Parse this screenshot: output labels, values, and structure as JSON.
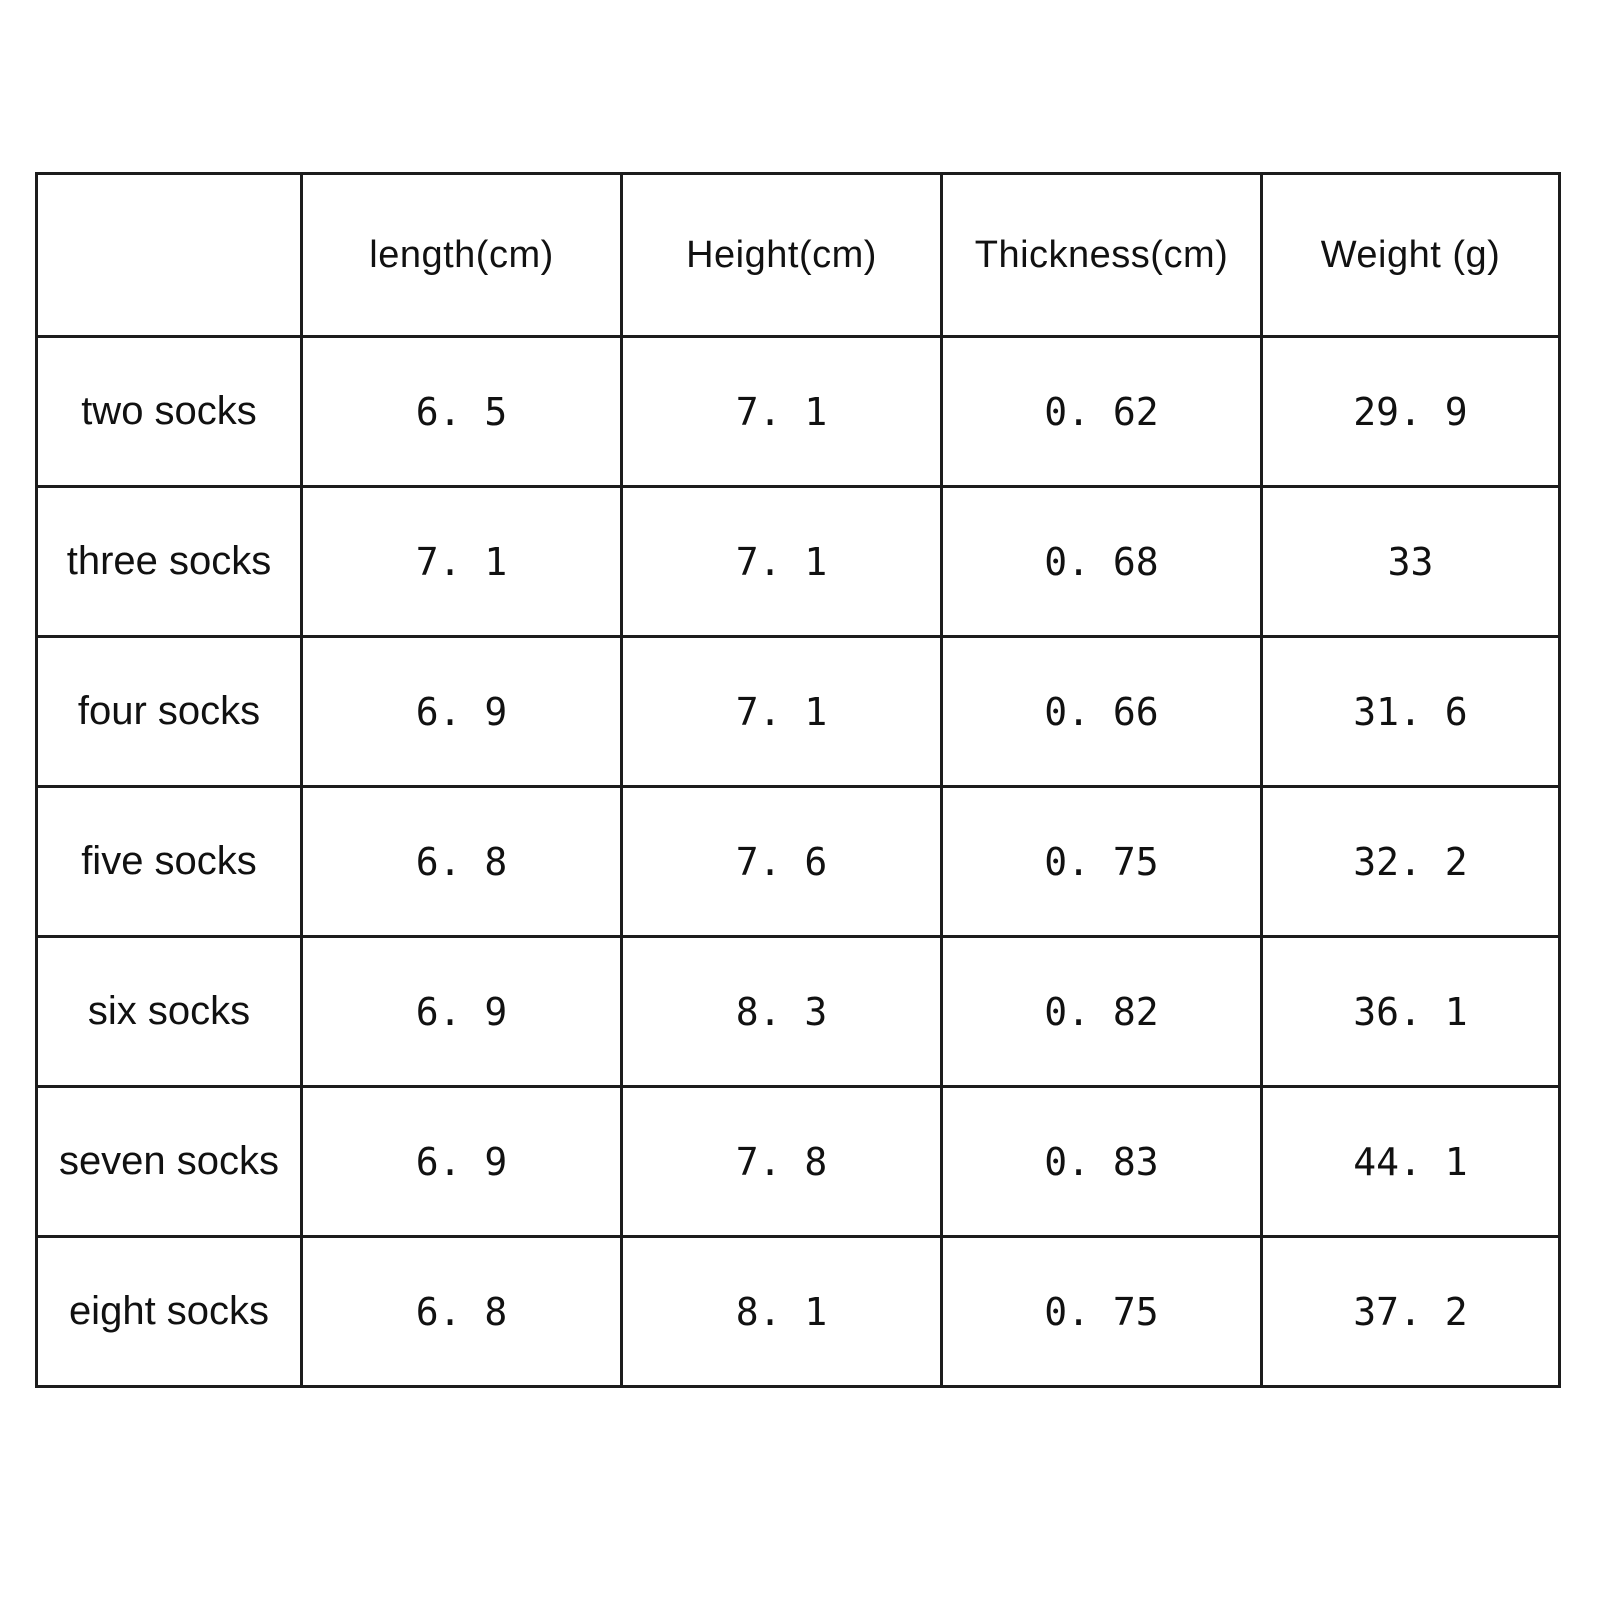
{
  "page": {
    "background_color": "#ffffff",
    "border_color": "#1c1c1c",
    "text_color": "#111111"
  },
  "table": {
    "columns": [
      "",
      "length(cm)",
      "Height(cm)",
      "Thickness(cm)",
      "Weight (g)"
    ],
    "rows": [
      {
        "label": "two socks",
        "length": "6. 5",
        "height": "7. 1",
        "thickness": "0. 62",
        "weight": "29. 9"
      },
      {
        "label": "three socks",
        "length": "7. 1",
        "height": "7. 1",
        "thickness": "0. 68",
        "weight": "33"
      },
      {
        "label": "four socks",
        "length": "6. 9",
        "height": "7. 1",
        "thickness": "0. 66",
        "weight": "31. 6"
      },
      {
        "label": "five socks",
        "length": "6. 8",
        "height": "7. 6",
        "thickness": "0. 75",
        "weight": "32. 2"
      },
      {
        "label": "six socks",
        "length": "6. 9",
        "height": "8. 3",
        "thickness": "0. 82",
        "weight": "36. 1"
      },
      {
        "label": "seven socks",
        "length": "6. 9",
        "height": "7. 8",
        "thickness": "0. 83",
        "weight": "44. 1"
      },
      {
        "label": "eight socks",
        "length": "6. 8",
        "height": "8. 1",
        "thickness": "0. 75",
        "weight": "37. 2"
      }
    ]
  },
  "chart_data": {
    "type": "table",
    "title": "",
    "row_labels": [
      "two socks",
      "three socks",
      "four socks",
      "five socks",
      "six socks",
      "seven socks",
      "eight socks"
    ],
    "series": [
      {
        "name": "length(cm)",
        "values": [
          6.5,
          7.1,
          6.9,
          6.8,
          6.9,
          6.9,
          6.8
        ]
      },
      {
        "name": "Height(cm)",
        "values": [
          7.1,
          7.1,
          7.1,
          7.6,
          8.3,
          7.8,
          8.1
        ]
      },
      {
        "name": "Thickness(cm)",
        "values": [
          0.62,
          0.68,
          0.66,
          0.75,
          0.82,
          0.83,
          0.75
        ]
      },
      {
        "name": "Weight (g)",
        "values": [
          29.9,
          33,
          31.6,
          32.2,
          36.1,
          44.1,
          37.2
        ]
      }
    ]
  }
}
